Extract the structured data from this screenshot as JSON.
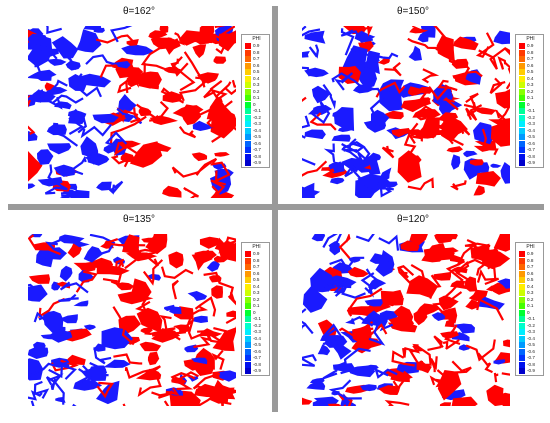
{
  "panels": [
    {
      "title": "θ=162°",
      "legend_title": "PHI"
    },
    {
      "title": "θ=150°",
      "legend_title": "PHI"
    },
    {
      "title": "θ=135°",
      "legend_title": "PHI"
    },
    {
      "title": "θ=120°",
      "legend_title": "PHI"
    }
  ],
  "colorbar": {
    "levels": [
      "0.9",
      "0.8",
      "0.7",
      "0.6",
      "0.5",
      "0.4",
      "0.3",
      "0.2",
      "0.1",
      "0",
      "-0.1",
      "-0.2",
      "-0.3",
      "-0.4",
      "-0.5",
      "-0.6",
      "-0.7",
      "-0.8",
      "-0.9"
    ],
    "colors": [
      "#ff0000",
      "#ff3a00",
      "#ff6600",
      "#ff9900",
      "#ffcc00",
      "#ffee00",
      "#ccff00",
      "#88ff00",
      "#44ff00",
      "#00ff33",
      "#00ff99",
      "#00ffcc",
      "#00eeff",
      "#00ccff",
      "#0099ff",
      "#0066ff",
      "#0033ff",
      "#0011ee",
      "#0000cc"
    ]
  },
  "colors": {
    "phase_positive": "#ff0000",
    "phase_negative": "#1a1aff",
    "divider": "#9a9a9a"
  }
}
